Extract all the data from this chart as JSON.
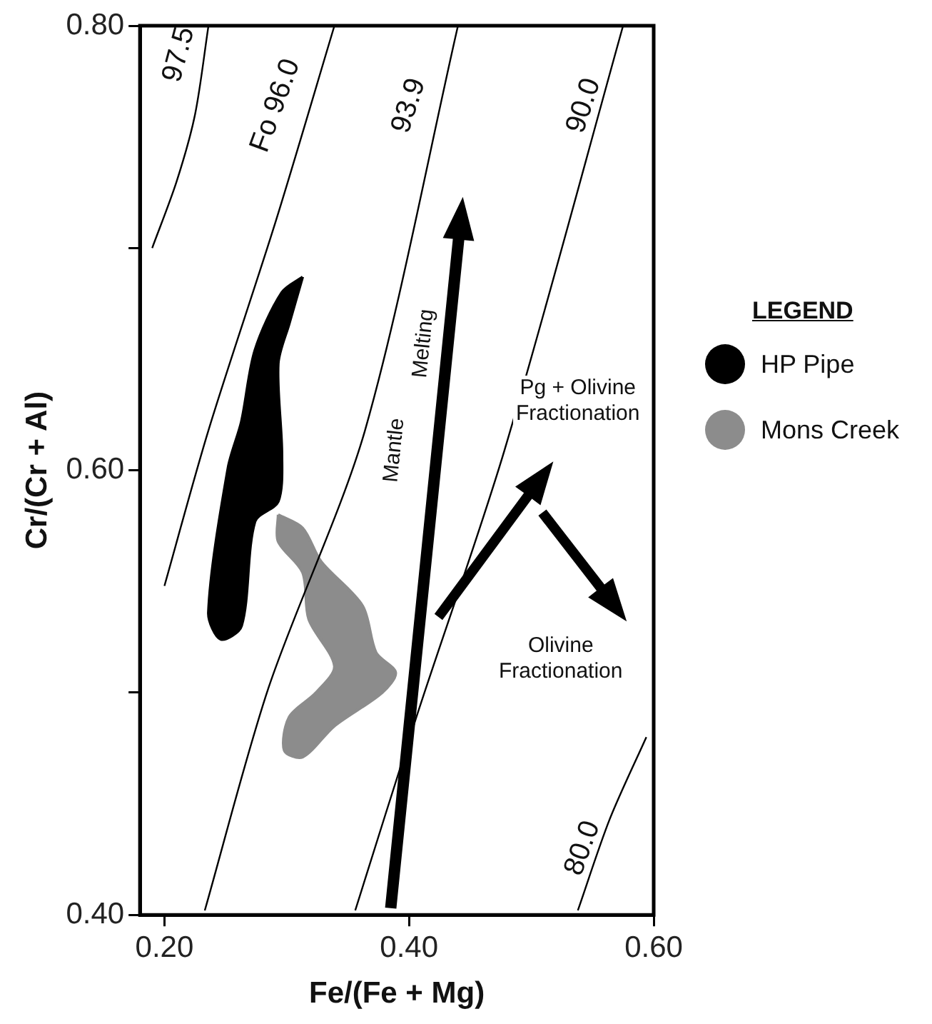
{
  "chart_data": {
    "type": "line",
    "xlabel": "Fe/(Fe + Mg)",
    "ylabel": "Cr/(Cr + Al)",
    "legend_title": "LEGEND",
    "legend": "right",
    "grid": false,
    "marker": "none",
    "xlim": [
      0.18,
      0.6
    ],
    "xticks": [
      {
        "value": 0.2,
        "label": "0.20"
      },
      {
        "value": 0.4,
        "label": "0.40"
      },
      {
        "value": 0.6,
        "label": "0.60"
      }
    ],
    "ylim": [
      0.4,
      0.8
    ],
    "yticks": [
      {
        "value": 0.4,
        "label": "0.40"
      },
      {
        "value": 0.5,
        "label": null
      },
      {
        "value": 0.6,
        "label": "0.60"
      },
      {
        "value": 0.7,
        "label": null
      },
      {
        "value": 0.8,
        "label": "0.80"
      }
    ],
    "series": [
      {
        "type": "line",
        "color": "#000000",
        "x": [
          0.236,
          0.225,
          0.21,
          0.19
        ],
        "values": [
          0.8,
          0.76,
          0.73,
          0.7
        ]
      },
      {
        "type": "line",
        "color": "#000000",
        "x": [
          0.339,
          0.291,
          0.236,
          0.2
        ],
        "values": [
          0.8,
          0.712,
          0.618,
          0.548
        ]
      },
      {
        "type": "line",
        "color": "#000000",
        "x": [
          0.44,
          0.364,
          0.285,
          0.233
        ],
        "values": [
          0.8,
          0.618,
          0.502,
          0.402
        ]
      },
      {
        "type": "line",
        "color": "#000000",
        "x": [
          0.575,
          0.478,
          0.406,
          0.356
        ],
        "values": [
          0.8,
          0.609,
          0.489,
          0.402
        ]
      },
      {
        "type": "line",
        "color": "#000000",
        "x": [
          0.594,
          0.564,
          0.538
        ],
        "values": [
          0.48,
          0.443,
          0.402
        ]
      },
      {
        "type": "area",
        "name": "HP Pipe",
        "color": "#000000",
        "x": [
          0.313,
          0.302,
          0.293,
          0.296,
          0.293,
          0.274,
          0.263,
          0.246,
          0.236,
          0.252,
          0.263,
          0.274,
          0.296,
          0.313
        ],
        "values": [
          0.687,
          0.666,
          0.648,
          0.607,
          0.586,
          0.577,
          0.53,
          0.524,
          0.536,
          0.601,
          0.622,
          0.654,
          0.68,
          0.687
        ]
      },
      {
        "type": "area",
        "name": "Mons Creek",
        "color": "#8c8c8c",
        "x": [
          0.293,
          0.313,
          0.328,
          0.362,
          0.373,
          0.389,
          0.378,
          0.339,
          0.313,
          0.298,
          0.302,
          0.324,
          0.339,
          0.318,
          0.313,
          0.293,
          0.293
        ],
        "values": [
          0.58,
          0.574,
          0.559,
          0.539,
          0.518,
          0.509,
          0.5,
          0.485,
          0.471,
          0.474,
          0.489,
          0.5,
          0.512,
          0.533,
          0.554,
          0.568,
          0.58
        ]
      }
    ],
    "annotations": [
      "97.5",
      "Fo 96.0",
      "93.9",
      "90.0",
      "80.0",
      "Mantle",
      "Melting",
      "Pg + Olivine\nFractionation",
      "Olivine\nFractionation"
    ]
  }
}
